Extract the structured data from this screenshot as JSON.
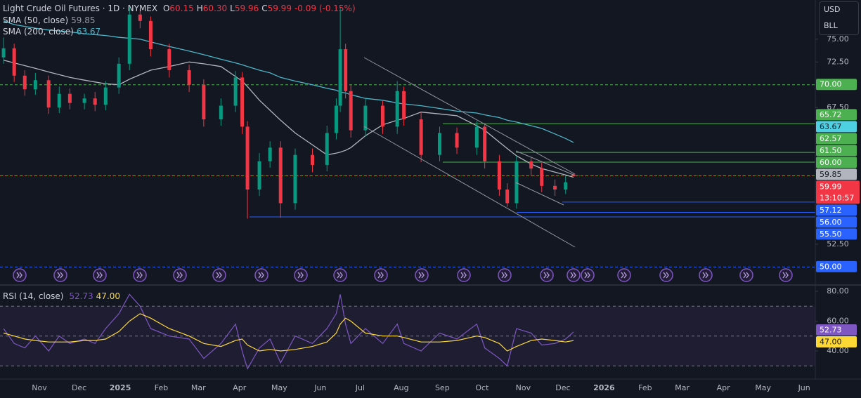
{
  "chart_data": [
    {
      "type": "candlestick",
      "title": "Light Crude Oil Futures · 1D · NYMEX",
      "header": [
        {
          "label": "O",
          "value": "60.15"
        },
        {
          "label": "H",
          "value": "60.30"
        },
        {
          "label": "L",
          "value": "59.96"
        },
        {
          "label": "C",
          "value": "59.99"
        }
      ],
      "change": "-0.09 (-0.15%)",
      "currency": "USD",
      "unit": "BLL",
      "x": [
        4,
        12,
        20,
        28,
        38,
        46,
        54,
        65,
        73,
        81,
        91,
        99,
        107,
        115,
        129,
        144,
        155,
        168,
        179,
        184,
        188,
        197,
        205,
        213,
        224,
        237,
        248,
        255,
        258,
        262,
        266,
        277,
        290,
        301,
        306,
        319,
        333,
        346,
        361,
        367,
        378,
        384,
        391,
        402,
        410,
        420,
        428,
        434
      ],
      "open": [
        73.0,
        74.0,
        71.0,
        69.5,
        70.5,
        67.5,
        69.0,
        68.0,
        68.5,
        67.8,
        69.7,
        72.3,
        77.7,
        77.0,
        73.9,
        71.6,
        70.0,
        66.2,
        67.7,
        70.8,
        65.4,
        58.5,
        61.6,
        63.1,
        57.0,
        62.3,
        61.2,
        64.7,
        67.7,
        73.9,
        69.3,
        65.0,
        67.7,
        65.4,
        69.3,
        66.2,
        62.3,
        64.7,
        63.1,
        65.4,
        61.6,
        58.5,
        57.0,
        61.6,
        60.8,
        58.9,
        58.5,
        60.15
      ],
      "high": [
        75.2,
        74.5,
        71.6,
        71.3,
        71.0,
        69.8,
        69.6,
        69.0,
        69.2,
        70.4,
        73.0,
        78.5,
        78.3,
        77.5,
        74.5,
        72.2,
        70.6,
        68.5,
        71.5,
        71.4,
        66.0,
        62.5,
        63.8,
        63.8,
        63.0,
        63.0,
        65.5,
        68.5,
        78.5,
        74.5,
        70.0,
        68.5,
        68.3,
        70.4,
        69.8,
        67.0,
        65.4,
        65.3,
        66.0,
        65.8,
        62.3,
        59.2,
        62.2,
        62.0,
        61.5,
        59.6,
        60.0,
        60.3
      ],
      "low": [
        72.3,
        70.3,
        68.8,
        68.9,
        66.8,
        66.9,
        67.3,
        67.3,
        67.1,
        67.2,
        69.0,
        71.6,
        76.2,
        73.1,
        70.8,
        69.2,
        65.4,
        65.5,
        67.0,
        64.6,
        55.3,
        57.8,
        60.9,
        55.4,
        56.3,
        60.4,
        60.5,
        64.0,
        67.0,
        68.5,
        64.2,
        64.3,
        64.6,
        64.6,
        65.5,
        61.5,
        61.6,
        62.4,
        62.3,
        60.8,
        57.8,
        56.6,
        56.4,
        60.0,
        58.2,
        57.8,
        58.0,
        59.96
      ],
      "close": [
        74.0,
        71.0,
        69.5,
        70.5,
        67.5,
        69.0,
        68.0,
        68.5,
        67.8,
        69.7,
        72.3,
        77.7,
        77.0,
        73.9,
        71.6,
        70.0,
        66.2,
        67.7,
        70.8,
        65.4,
        58.5,
        61.6,
        63.1,
        57.0,
        62.3,
        61.2,
        64.7,
        67.7,
        73.9,
        69.3,
        65.0,
        67.7,
        65.4,
        69.3,
        66.2,
        62.3,
        64.7,
        63.1,
        65.4,
        61.6,
        58.5,
        57.0,
        61.6,
        60.8,
        58.9,
        58.5,
        59.3,
        59.99
      ],
      "up_color": "#089981",
      "down_color": "#f23645",
      "series": [
        {
          "name": "SMA (50, close)",
          "color": "#b2b5be",
          "last_label": "59.85",
          "values": [
            72.7,
            72.4,
            72.1,
            71.8,
            71.4,
            71.1,
            70.8,
            70.5,
            70.3,
            70.1,
            70.0,
            70.6,
            71.1,
            71.6,
            72.0,
            72.5,
            72.3,
            72.0,
            70.9,
            70.4,
            69.8,
            68.3,
            67.2,
            66.1,
            64.7,
            63.4,
            62.3,
            62.5,
            62.6,
            62.8,
            63.1,
            64.4,
            65.6,
            66.1,
            66.3,
            67.0,
            66.8,
            66.6,
            65.5,
            65.0,
            63.7,
            63.0,
            62.2,
            61.3,
            60.8,
            60.4,
            60.1,
            59.85
          ]
        },
        {
          "name": "SMA (200, close)",
          "color": "#4db6c8",
          "last_label": "63.67",
          "values": [
            77.0,
            76.6,
            76.4,
            76.2,
            76.0,
            75.9,
            75.8,
            75.6,
            75.5,
            75.4,
            75.2,
            75.1,
            75.0,
            74.7,
            74.2,
            73.7,
            73.3,
            72.8,
            72.4,
            72.2,
            72.0,
            71.6,
            71.3,
            70.8,
            70.4,
            70.0,
            69.6,
            69.4,
            69.2,
            69.1,
            68.9,
            68.5,
            68.3,
            68.0,
            67.9,
            67.7,
            67.4,
            67.1,
            66.9,
            66.7,
            66.4,
            66.1,
            65.9,
            65.5,
            65.2,
            64.6,
            64.1,
            63.67
          ]
        }
      ],
      "xlim": [
        1.3,
        616.4
      ],
      "xticks": [
        {
          "value": 31,
          "label": "Nov"
        },
        {
          "value": 61,
          "label": "Dec"
        },
        {
          "value": 92,
          "label": "2025"
        },
        {
          "value": 123,
          "label": "Feb"
        },
        {
          "value": 151,
          "label": "Mar"
        },
        {
          "value": 182,
          "label": "Apr"
        },
        {
          "value": 212,
          "label": "May"
        },
        {
          "value": 243,
          "label": "Jun"
        },
        {
          "value": 273,
          "label": "Jul"
        },
        {
          "value": 304,
          "label": "Aug"
        },
        {
          "value": 335,
          "label": "Sep"
        },
        {
          "value": 365,
          "label": "Oct"
        },
        {
          "value": 396,
          "label": "Nov"
        },
        {
          "value": 426,
          "label": "Dec"
        },
        {
          "value": 457,
          "label": "2026"
        },
        {
          "value": 488,
          "label": "Feb"
        },
        {
          "value": 516,
          "label": "Mar"
        },
        {
          "value": 547,
          "label": "Apr"
        },
        {
          "value": 577,
          "label": "May"
        },
        {
          "value": 608,
          "label": "Jun"
        }
      ],
      "ylim": [
        48.1,
        79.3
      ],
      "yticks": [
        {
          "value": 75,
          "label": "75.00"
        },
        {
          "value": 72.5,
          "label": "72.50"
        },
        {
          "value": 67.5,
          "label": "67.50"
        },
        {
          "value": 52.5,
          "label": "52.50"
        }
      ],
      "price_tags": [
        {
          "value": 70,
          "label": "70.00",
          "color": "#4caf50",
          "line": "dashed"
        },
        {
          "value": 65.72,
          "label": "65.72",
          "color": "#4caf50",
          "line": "solid"
        },
        {
          "value": 63.67,
          "label": "63.67",
          "color": "#4dd0e1",
          "line": "none"
        },
        {
          "value": 62.57,
          "label": "62.57",
          "color": "#4caf50",
          "line": "solid"
        },
        {
          "value": 61.5,
          "label": "61.50",
          "color": "#4caf50",
          "line": "solid"
        },
        {
          "value": 60,
          "label": "60.00",
          "color": "#4caf50",
          "line": "dashed"
        },
        {
          "value": 59.85,
          "label": "59.85",
          "color": "#b2b5be",
          "line": "none"
        },
        {
          "value": 57.12,
          "label": "57.12",
          "color": "#2962ff",
          "line": "solid"
        },
        {
          "value": 56,
          "label": "56.00",
          "color": "#2962ff",
          "line": "solid"
        },
        {
          "value": 55.5,
          "label": "55.50",
          "color": "#2962ff",
          "line": "solid"
        },
        {
          "value": 50,
          "label": "50.00",
          "color": "#2962ff",
          "line": "dashed"
        }
      ],
      "last_price": {
        "value": 59.99,
        "label": "59.99",
        "countdown": "13:10:57",
        "color": "#f23645"
      }
    },
    {
      "type": "line",
      "title": "RSI (14, close)",
      "x": [
        4,
        12,
        20,
        28,
        38,
        46,
        54,
        65,
        73,
        81,
        91,
        99,
        107,
        115,
        129,
        144,
        155,
        168,
        179,
        184,
        188,
        197,
        205,
        213,
        224,
        237,
        248,
        255,
        258,
        262,
        266,
        277,
        290,
        301,
        306,
        319,
        333,
        346,
        361,
        367,
        378,
        384,
        391,
        402,
        410,
        420,
        428,
        434
      ],
      "series": [
        {
          "color": "#7e57c2",
          "last_label": "52.73",
          "values": [
            55,
            45,
            42,
            50,
            40,
            50,
            45,
            48,
            45,
            55,
            65,
            78,
            70,
            55,
            50,
            48,
            35,
            45,
            58,
            40,
            28,
            42,
            48,
            32,
            50,
            45,
            55,
            65,
            78,
            58,
            45,
            55,
            45,
            58,
            45,
            40,
            52,
            48,
            58,
            42,
            35,
            30,
            55,
            52,
            44,
            45,
            48,
            52.73
          ]
        },
        {
          "color": "#fdd835",
          "last_label": "47.00",
          "values": [
            52,
            50,
            48,
            47,
            46,
            46,
            46,
            47,
            47,
            48,
            53,
            60,
            65,
            62,
            55,
            50,
            45,
            43,
            47,
            48,
            44,
            40,
            41,
            40,
            41,
            43,
            46,
            52,
            58,
            62,
            60,
            52,
            50,
            50,
            49,
            46,
            46,
            47,
            50,
            49,
            45,
            40,
            43,
            47,
            48,
            47,
            46,
            47.0
          ]
        }
      ],
      "xlim": [
        1.3,
        616.4
      ],
      "ylim": [
        23.5,
        83.3
      ],
      "yticks": [
        {
          "value": 80,
          "label": "80.00"
        },
        {
          "value": 60,
          "label": "60.00"
        },
        {
          "value": 40,
          "label": "40.00"
        }
      ],
      "levels": [
        70,
        50,
        30
      ]
    }
  ]
}
